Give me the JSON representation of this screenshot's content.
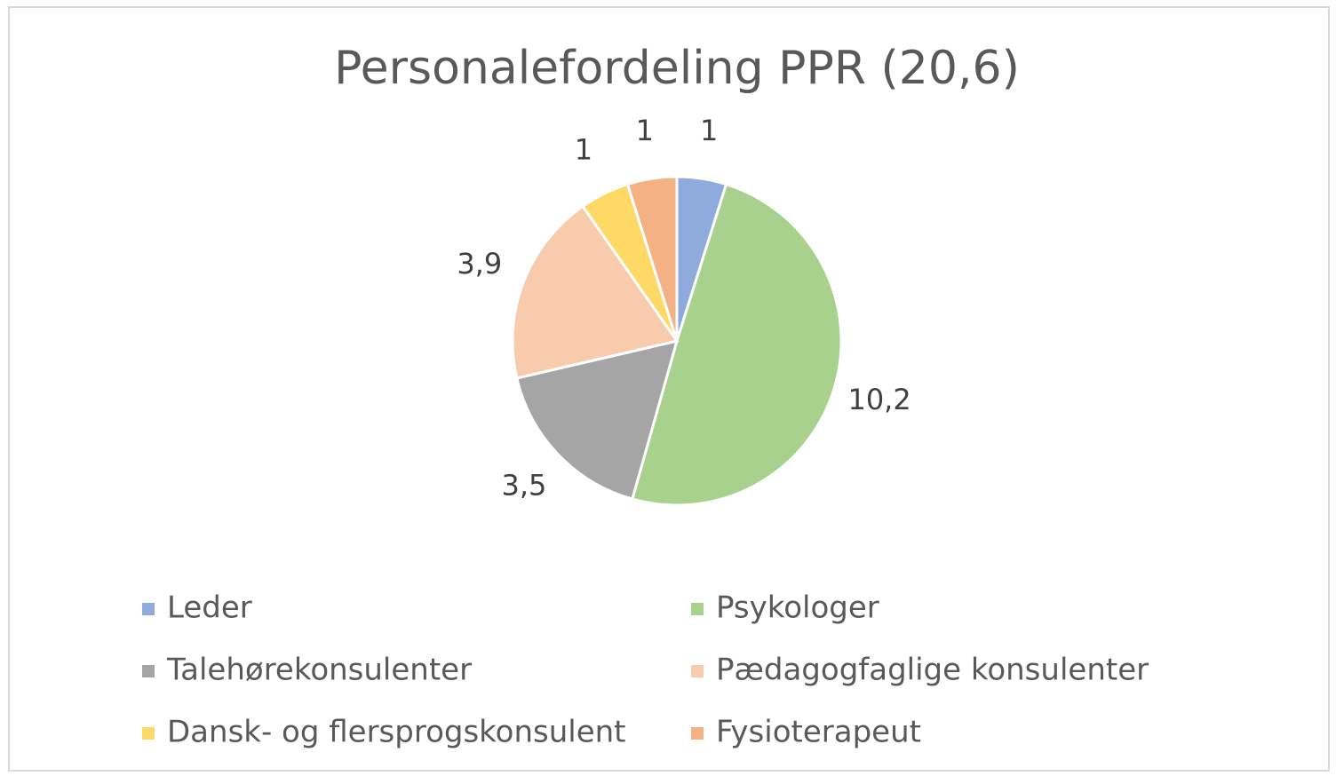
{
  "chart_data": {
    "type": "pie",
    "title": "Personalefordeling PPR (20,6)",
    "categories": [
      "Leder",
      "Psykologer",
      "Talehørekonsulenter",
      "Pædagogfaglige konsulenter",
      "Dansk- og flersprogskonsulent",
      "Fysioterapeut"
    ],
    "values": [
      1,
      10.2,
      3.5,
      3.9,
      1,
      1
    ],
    "value_labels": [
      "1",
      "10,2",
      "3,5",
      "3,9",
      "1",
      "1"
    ],
    "colors": [
      "#8faadc",
      "#a9d18e",
      "#a5a5a5",
      "#f8cbad",
      "#ffd966",
      "#f4b183"
    ],
    "legend": "bottom"
  }
}
